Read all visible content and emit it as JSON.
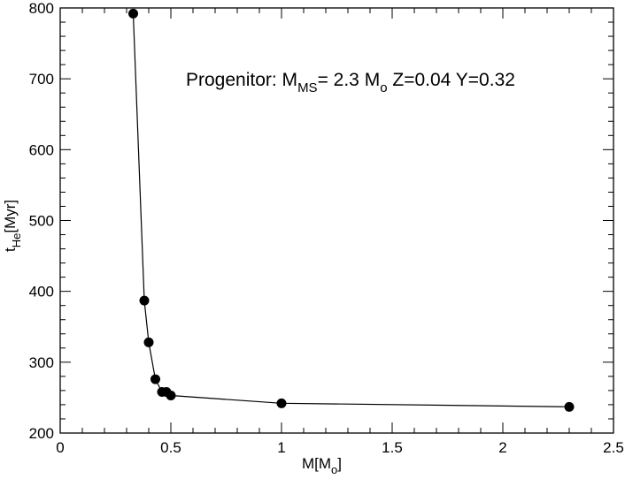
{
  "chart_data": {
    "type": "scatter",
    "title": "",
    "annotation": {
      "prefix": "Progenitor: M",
      "ms_sub": "MS",
      "mass": "= 2.3 M",
      "sun_sub": "o",
      "suffix": " Z=0.04 Y=0.32"
    },
    "xlabel": {
      "main": "M[M",
      "sub": "o",
      "end": "]"
    },
    "ylabel": {
      "main": "t",
      "sub": "He",
      "end": "[Myr]"
    },
    "xlim": [
      0,
      2.5
    ],
    "ylim": [
      200,
      800
    ],
    "xticks": [
      0,
      0.5,
      1,
      1.5,
      2,
      2.5
    ],
    "xtick_labels": [
      "0",
      "0.5",
      "1",
      "1.5",
      "2",
      "2.5"
    ],
    "yticks": [
      200,
      300,
      400,
      500,
      600,
      700,
      800
    ],
    "ytick_labels": [
      "200",
      "300",
      "400",
      "500",
      "600",
      "700",
      "800"
    ],
    "connected": true,
    "marker_color": "#000000",
    "line_color": "#000000",
    "series": [
      {
        "x": [
          0.33,
          0.38,
          0.4,
          0.43,
          0.46,
          0.48,
          0.5,
          1.0,
          2.3
        ],
        "y": [
          792,
          387,
          328,
          276,
          258,
          258,
          253,
          242,
          237
        ]
      }
    ]
  }
}
